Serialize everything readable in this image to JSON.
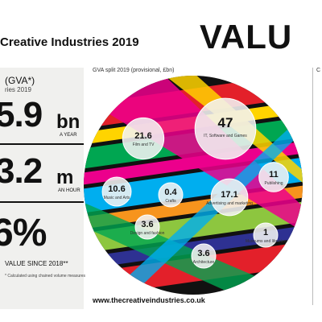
{
  "header": {
    "title": "Creative Industries 2019",
    "headline": "VALU"
  },
  "left_panel": {
    "gva_label": "(GVA*)",
    "gva_sub": "ries 2019",
    "stat1_value": "5.9",
    "stat1_unit": "bn",
    "stat1_caption": "A YEAR",
    "stat2_value": "3.2",
    "stat2_unit": "m",
    "stat2_caption": "AN HOUR",
    "stat3_value": "6%",
    "since_label": "VALUE SINCE 2018**",
    "footnote": "* Calculated using chained volume measures"
  },
  "chart_data": {
    "type": "bubble",
    "title": "GVA split 2019 (provisional, £bn)",
    "unit": "£bn",
    "points": [
      {
        "label": "Film and TV",
        "value": 21.6
      },
      {
        "label": "IT, Software and Games",
        "value": 47
      },
      {
        "label": "Publishing",
        "value": 11
      },
      {
        "label": "Music and Arts",
        "value": 10.6
      },
      {
        "label": "Crafts",
        "value": 0.4
      },
      {
        "label": "Advertising and marketing",
        "value": 17.1
      },
      {
        "label": "Design and fashion",
        "value": 3.6
      },
      {
        "label": "Museums and libraries",
        "value": 1
      },
      {
        "label": "Architecture",
        "value": 3.6
      }
    ]
  },
  "right_panel": {
    "label": "C"
  },
  "footer": {
    "url": "www.thecreativeindustries.co.uk"
  }
}
